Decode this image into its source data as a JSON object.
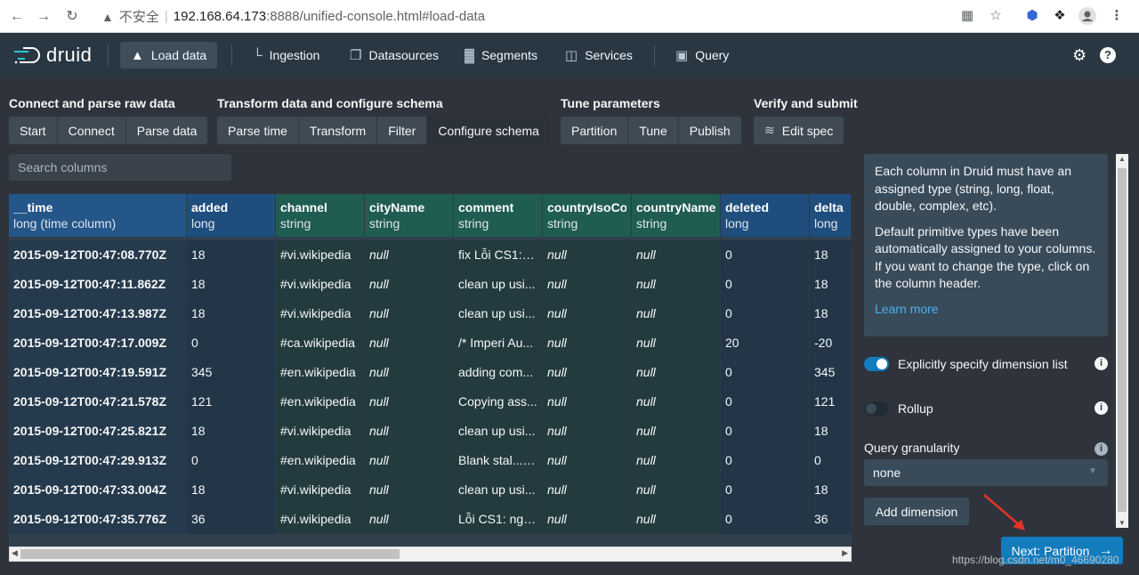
{
  "browser": {
    "insecure_label": "不安全",
    "url_host": "192.168.64.173",
    "url_path": ":8888/unified-console.html#load-data"
  },
  "nav": {
    "logo": "druid",
    "items": [
      {
        "label": "Load data"
      },
      {
        "label": "Ingestion"
      },
      {
        "label": "Datasources"
      },
      {
        "label": "Segments"
      },
      {
        "label": "Services"
      },
      {
        "label": "Query"
      }
    ]
  },
  "steps": {
    "groups": [
      {
        "title": "Connect and parse raw data",
        "buttons": [
          "Start",
          "Connect",
          "Parse data"
        ]
      },
      {
        "title": "Transform data and configure schema",
        "buttons": [
          "Parse time",
          "Transform",
          "Filter",
          "Configure schema"
        ]
      },
      {
        "title": "Tune parameters",
        "buttons": [
          "Partition",
          "Tune",
          "Publish"
        ]
      },
      {
        "title": "Verify and submit",
        "buttons": [
          "Edit spec"
        ]
      }
    ]
  },
  "search": {
    "placeholder": "Search columns"
  },
  "table": {
    "columns": [
      {
        "name": "__time",
        "type": "long (time column)"
      },
      {
        "name": "added",
        "type": "long"
      },
      {
        "name": "channel",
        "type": "string"
      },
      {
        "name": "cityName",
        "type": "string"
      },
      {
        "name": "comment",
        "type": "string"
      },
      {
        "name": "countryIsoCode",
        "type": "string"
      },
      {
        "name": "countryName",
        "type": "string"
      },
      {
        "name": "deleted",
        "type": "long"
      },
      {
        "name": "delta",
        "type": "long"
      }
    ],
    "rows": [
      [
        "2015-09-12T00:47:08.770Z",
        "18",
        "#vi.wikipedia",
        "null",
        "fix Lỗi CS1: n...",
        "null",
        "null",
        "0",
        "18"
      ],
      [
        "2015-09-12T00:47:11.862Z",
        "18",
        "#vi.wikipedia",
        "null",
        "clean up usi...",
        "null",
        "null",
        "0",
        "18"
      ],
      [
        "2015-09-12T00:47:13.987Z",
        "18",
        "#vi.wikipedia",
        "null",
        "clean up usi...",
        "null",
        "null",
        "0",
        "18"
      ],
      [
        "2015-09-12T00:47:17.009Z",
        "0",
        "#ca.wikipedia",
        "null",
        "/* Imperi Au...",
        "null",
        "null",
        "20",
        "-20"
      ],
      [
        "2015-09-12T00:47:19.591Z",
        "345",
        "#en.wikipedia",
        "null",
        "adding com...",
        "null",
        "null",
        "0",
        "345"
      ],
      [
        "2015-09-12T00:47:21.578Z",
        "121",
        "#en.wikipedia",
        "null",
        "Copying ass...",
        "null",
        "null",
        "0",
        "121"
      ],
      [
        "2015-09-12T00:47:25.821Z",
        "18",
        "#vi.wikipedia",
        "null",
        "clean up usi...",
        "null",
        "null",
        "0",
        "18"
      ],
      [
        "2015-09-12T00:47:29.913Z",
        "0",
        "#en.wikipedia",
        "null",
        "Blank stal... •••",
        "null",
        "null",
        "0",
        "0"
      ],
      [
        "2015-09-12T00:47:33.004Z",
        "18",
        "#vi.wikipedia",
        "null",
        "clean up usi...",
        "null",
        "null",
        "0",
        "18"
      ],
      [
        "2015-09-12T00:47:35.776Z",
        "36",
        "#vi.wikipedia",
        "null",
        "Lỗi CS1: ngà...",
        "null",
        "null",
        "0",
        "36"
      ]
    ]
  },
  "side": {
    "info_p1": "Each column in Druid must have an assigned type (string, long, float, double, complex, etc).",
    "info_p2": "Default primitive types have been automatically assigned to your columns. If you want to change the type, click on the column header.",
    "learn_more": "Learn more",
    "explicit_label": "Explicitly specify dimension list",
    "rollup_label": "Rollup",
    "granularity_label": "Query granularity",
    "granularity_value": "none",
    "add_dimension": "Add dimension",
    "next_button": "Next: Partition"
  },
  "watermark": "https://blog.csdn.net/m0_46690280",
  "colors": {
    "accent": "#137cbd",
    "navbar": "#293742",
    "bg": "#2f343c"
  }
}
